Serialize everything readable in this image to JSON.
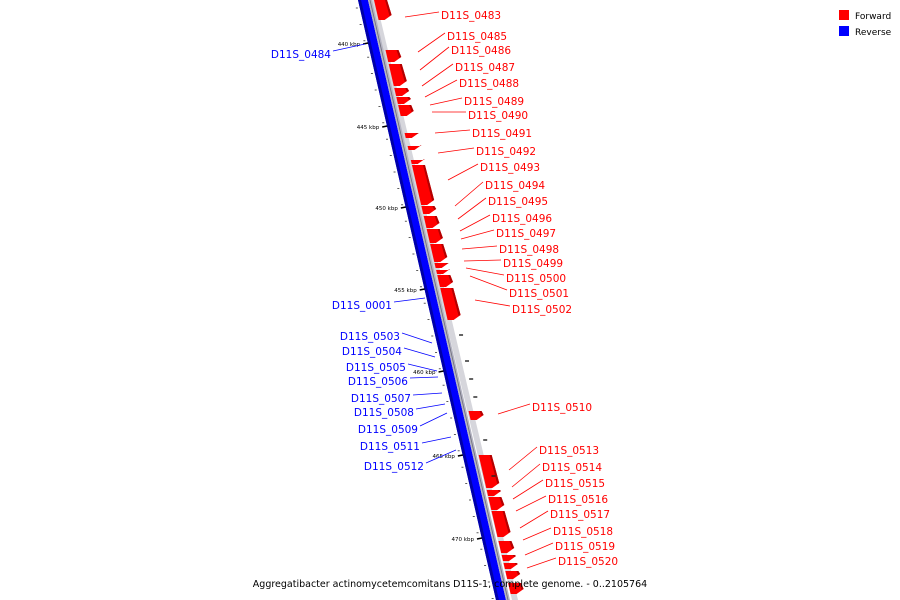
{
  "legend": [
    {
      "label": "Forward",
      "color": "#ff0000"
    },
    {
      "label": "Reverse",
      "color": "#0000ff"
    }
  ],
  "caption": "Aggregatibacter actinomycetemcomitans D11S-1, complete genome. - 0..2105764",
  "colors": {
    "forward": "#ff0000",
    "reverse": "#0000ff",
    "backbone": "#9a9aa8"
  },
  "ticks": [
    "440 kbp",
    "445 kbp",
    "450 kbp",
    "455 kbp",
    "460 kbp",
    "465 kbp",
    "470 kbp"
  ],
  "forward_genes": [
    "D11S_0483",
    "D11S_0485",
    "D11S_0486",
    "D11S_0487",
    "D11S_0488",
    "D11S_0489",
    "D11S_0490",
    "D11S_0491",
    "D11S_0492",
    "D11S_0493",
    "D11S_0494",
    "D11S_0495",
    "D11S_0496",
    "D11S_0497",
    "D11S_0498",
    "D11S_0499",
    "D11S_0500",
    "D11S_0501",
    "D11S_0502",
    "D11S_0510",
    "D11S_0513",
    "D11S_0514",
    "D11S_0515",
    "D11S_0516",
    "D11S_0517",
    "D11S_0518",
    "D11S_0519",
    "D11S_0520"
  ],
  "reverse_genes": [
    "D11S_0484",
    "D11S_0001",
    "D11S_0503",
    "D11S_0504",
    "D11S_0505",
    "D11S_0506",
    "D11S_0507",
    "D11S_0508",
    "D11S_0509",
    "D11S_0511",
    "D11S_0512"
  ]
}
